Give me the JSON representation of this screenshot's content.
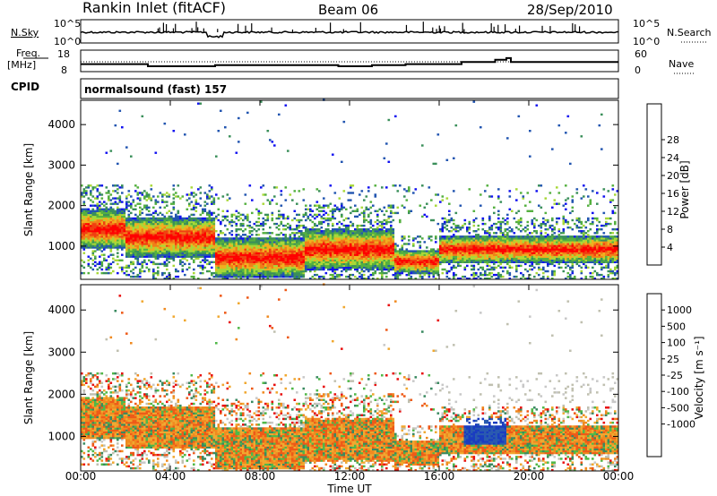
{
  "header": {
    "station": "Rankin Inlet (fitACF)",
    "beam": "Beam 06",
    "date": "28/Sep/2010"
  },
  "left_labels": {
    "nsky": "N.Sky",
    "freq": "Freq.",
    "freq_unit": "[MHz]",
    "cpid": "CPID"
  },
  "right_labels": {
    "nsearch": "N.Search",
    "nave": "Nave"
  },
  "cpid_text": "normalsound (fast) 157",
  "colors": {
    "power": [
      "#1010f0",
      "#2255b0",
      "#3a8f5a",
      "#55b040",
      "#a8d838",
      "#f0b020",
      "#f08018",
      "#f04010",
      "#ff0000"
    ],
    "velocity": [
      "#e81010",
      "#ee5a18",
      "#f08a20",
      "#f0a830",
      "#c0c0b0",
      "#c8c8c8",
      "#50b848",
      "#3a8a60",
      "#2a5ab0",
      "#1a3cc0"
    ]
  },
  "chart_data": [
    {
      "type": "line",
      "name": "noise",
      "ylabels": [
        "10^5",
        "10^0"
      ],
      "yr_labels": [
        "10^5",
        "10^0"
      ],
      "x_range_hours": [
        0,
        24
      ]
    },
    {
      "type": "line",
      "name": "frequency",
      "yticks": [
        "18",
        "8"
      ],
      "yr_ticks": [
        "60",
        "0"
      ],
      "series": [
        {
          "x": [
            0,
            1,
            1,
            3,
            3,
            6,
            6,
            11.5,
            11.5,
            13,
            13,
            14.5,
            14.5,
            17,
            17,
            18.5,
            18.5,
            19,
            19,
            19.2,
            19.2,
            24
          ],
          "y": [
            11.5,
            11.5,
            11.5,
            11.5,
            10.5,
            10.5,
            11,
            11,
            10.5,
            10.5,
            11,
            11,
            11.5,
            11.5,
            12.5,
            12.5,
            13.5,
            13.5,
            14.3,
            14.3,
            12.5,
            12.5
          ]
        }
      ]
    },
    {
      "type": "heatmap",
      "name": "power",
      "ylabel": "Slant Range [km]",
      "yticks": [
        "1000",
        "2000",
        "3000",
        "4000"
      ],
      "colorbar_label": "Power [dB]",
      "colorbar_ticks": [
        "4",
        "8",
        "12",
        "16",
        "20",
        "24",
        "28"
      ]
    },
    {
      "type": "heatmap",
      "name": "velocity",
      "ylabel": "Slant Range [km]",
      "yticks": [
        "1000",
        "2000",
        "3000",
        "4000"
      ],
      "xlabel": "Time UT",
      "xticks": [
        "00:00",
        "04:00",
        "08:00",
        "12:00",
        "16:00",
        "20:00",
        "00:00"
      ],
      "colorbar_label": "Velocity [m s⁻¹]",
      "colorbar_ticks": [
        "1000",
        "500",
        "100",
        "25",
        "-25",
        "-100",
        "-500",
        "-1000"
      ]
    }
  ]
}
